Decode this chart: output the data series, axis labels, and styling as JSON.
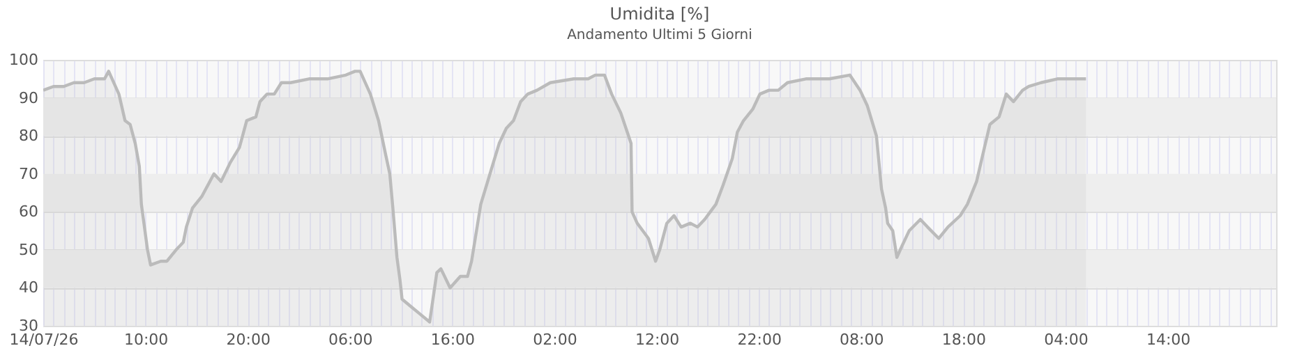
{
  "chart_data": {
    "type": "area",
    "title": "Umidita [%]",
    "subtitle": "Andamento Ultimi 5 Giorni",
    "x": [
      "--07-14T00:00",
      "--07-14T01:00",
      "--07-14T02:00",
      "--07-14T03:00",
      "--07-14T04:00",
      "--07-14T05:00",
      "--07-14T06:00",
      "--07-14T06:24",
      "--07-14T07:24",
      "--07-14T08:00",
      "--07-14T08:30",
      "--07-14T09:00",
      "--07-14T09:24",
      "--07-14T09:36",
      "--07-14T09:54",
      "--07-14T10:12",
      "--07-14T10:30",
      "--07-14T11:30",
      "--07-14T12:06",
      "--07-14T13:00",
      "--07-14T13:42",
      "--07-14T14:00",
      "--07-14T14:36",
      "--07-14T15:30",
      "--07-14T16:42",
      "--07-14T17:24",
      "--07-14T18:18",
      "--07-14T19:12",
      "--07-14T19:54",
      "--07-14T20:48",
      "--07-14T21:12",
      "--07-14T21:54",
      "--07-14T22:36",
      "--07-14T23:18",
      "--07-15T00:12",
      "--07-15T02:00",
      "--07-15T03:48",
      "--07-15T05:36",
      "--07-15T06:30",
      "--07-15T07:00",
      "--07-15T08:00",
      "--07-15T08:48",
      "--07-15T09:30",
      "--07-15T09:54",
      "--07-15T10:12",
      "--07-15T10:36",
      "--07-15T10:54",
      "--07-15T11:06",
      "--07-15T12:00",
      "--07-15T12:54",
      "--07-15T13:48",
      "--07-15T14:30",
      "--07-15T14:54",
      "--07-15T15:48",
      "--07-15T16:48",
      "--07-15T17:30",
      "--07-15T17:54",
      "--07-15T18:48",
      "--07-15T19:42",
      "--07-15T20:36",
      "--07-15T21:18",
      "--07-15T22:00",
      "--07-15T22:42",
      "--07-15T23:24",
      "--07-16T00:18",
      "--07-16T01:36",
      "--07-16T03:54",
      "--07-16T05:18",
      "--07-16T06:00",
      "--07-16T06:54",
      "--07-16T07:36",
      "--07-16T08:30",
      "--07-16T09:30",
      "--07-16T09:36",
      "--07-16T10:06",
      "--07-16T11:12",
      "--07-16T11:54",
      "--07-16T12:18",
      "--07-16T13:00",
      "--07-16T13:42",
      "--07-16T14:24",
      "--07-16T15:18",
      "--07-16T16:00",
      "--07-16T16:42",
      "--07-16T17:48",
      "--07-16T18:30",
      "--07-16T19:24",
      "--07-16T19:54",
      "--07-16T20:30",
      "--07-16T21:24",
      "--07-16T22:06",
      "--07-16T23:00",
      "--07-16T23:54",
      "--07-17T00:48",
      "--07-17T02:36",
      "--07-17T04:54",
      "--07-17T06:54",
      "--07-17T07:54",
      "--07-17T08:36",
      "--07-17T09:30",
      "--07-17T10:00",
      "--07-17T10:24",
      "--07-17T10:36",
      "--07-17T11:06",
      "--07-17T11:30",
      "--07-17T12:00",
      "--07-17T12:42",
      "--07-17T13:48",
      "--07-17T14:30",
      "--07-17T15:36",
      "--07-17T16:30",
      "--07-17T17:42",
      "--07-17T18:24",
      "--07-17T19:18",
      "--07-17T19:54",
      "--07-17T20:36",
      "--07-17T21:30",
      "--07-17T22:12",
      "--07-17T22:54",
      "--07-17T23:48",
      "--07-18T00:24",
      "--07-18T01:36",
      "--07-18T03:12",
      "--07-18T04:36",
      "--07-18T06:00"
    ],
    "series": [
      {
        "color": "#bbbbbb",
        "values": [
          92,
          93,
          93,
          94,
          94,
          95,
          95,
          97,
          91,
          84,
          83,
          78,
          72,
          62,
          56,
          50,
          46,
          47,
          47,
          50,
          52,
          56,
          61,
          64,
          70,
          68,
          73,
          77,
          84,
          85,
          89,
          91,
          91,
          94,
          94,
          95,
          95,
          96,
          97,
          97,
          91,
          84,
          75,
          70,
          61,
          48,
          42,
          37,
          35,
          33,
          31,
          44,
          45,
          40,
          43,
          43,
          47,
          62,
          70,
          78,
          82,
          84,
          89,
          91,
          92,
          94,
          95,
          95,
          96,
          96,
          91,
          86,
          78,
          60,
          57,
          53,
          47,
          50,
          57,
          59,
          56,
          57,
          56,
          58,
          62,
          67,
          74,
          81,
          84,
          87,
          91,
          92,
          92,
          94,
          95,
          95,
          96,
          92,
          88,
          80,
          66,
          61,
          57,
          55,
          48,
          51,
          55,
          58,
          56,
          53,
          56,
          59,
          62,
          68,
          75,
          83,
          85,
          91,
          89,
          92,
          93,
          94,
          95,
          95,
          95
        ]
      }
    ],
    "xlim": [
      "--07-14T00:00",
      "--07-19T00:36"
    ],
    "ylim": [
      30,
      100
    ],
    "yticks": [
      30,
      40,
      50,
      60,
      70,
      80,
      90,
      100
    ],
    "xticks": [
      {
        "value": "--07-14T00:00",
        "label": "14/07/26"
      },
      {
        "value": "--07-14T01:00",
        "label": null
      },
      {
        "value": "--07-14T02:00",
        "label": null
      },
      {
        "value": "--07-14T03:00",
        "label": null
      },
      {
        "value": "--07-14T04:00",
        "label": null
      },
      {
        "value": "--07-14T05:00",
        "label": null
      },
      {
        "value": "--07-14T06:00",
        "label": null
      },
      {
        "value": "--07-14T07:00",
        "label": null
      },
      {
        "value": "--07-14T08:00",
        "label": null
      },
      {
        "value": "--07-14T09:00",
        "label": null
      },
      {
        "value": "--07-14T10:00",
        "label": "10:00"
      },
      {
        "value": "--07-14T11:00",
        "label": null
      },
      {
        "value": "--07-14T12:00",
        "label": null
      },
      {
        "value": "--07-14T13:00",
        "label": null
      },
      {
        "value": "--07-14T14:00",
        "label": null
      },
      {
        "value": "--07-14T15:00",
        "label": null
      },
      {
        "value": "--07-14T16:00",
        "label": null
      },
      {
        "value": "--07-14T17:00",
        "label": null
      },
      {
        "value": "--07-14T18:00",
        "label": null
      },
      {
        "value": "--07-14T19:00",
        "label": null
      },
      {
        "value": "--07-14T20:00",
        "label": "20:00"
      },
      {
        "value": "--07-14T21:00",
        "label": null
      },
      {
        "value": "--07-14T22:00",
        "label": null
      },
      {
        "value": "--07-14T23:00",
        "label": null
      },
      {
        "value": "--07-15T00:00",
        "label": null
      },
      {
        "value": "--07-15T01:00",
        "label": null
      },
      {
        "value": "--07-15T02:00",
        "label": null
      },
      {
        "value": "--07-15T03:00",
        "label": null
      },
      {
        "value": "--07-15T04:00",
        "label": null
      },
      {
        "value": "--07-15T05:00",
        "label": null
      },
      {
        "value": "--07-15T06:00",
        "label": "06:00"
      },
      {
        "value": "--07-15T07:00",
        "label": null
      },
      {
        "value": "--07-15T08:00",
        "label": null
      },
      {
        "value": "--07-15T09:00",
        "label": null
      },
      {
        "value": "--07-15T10:00",
        "label": null
      },
      {
        "value": "--07-15T11:00",
        "label": null
      },
      {
        "value": "--07-15T12:00",
        "label": null
      },
      {
        "value": "--07-15T13:00",
        "label": null
      },
      {
        "value": "--07-15T14:00",
        "label": null
      },
      {
        "value": "--07-15T15:00",
        "label": null
      },
      {
        "value": "--07-15T16:00",
        "label": "16:00"
      },
      {
        "value": "--07-15T17:00",
        "label": null
      },
      {
        "value": "--07-15T18:00",
        "label": null
      },
      {
        "value": "--07-15T19:00",
        "label": null
      },
      {
        "value": "--07-15T20:00",
        "label": null
      },
      {
        "value": "--07-15T21:00",
        "label": null
      },
      {
        "value": "--07-15T22:00",
        "label": null
      },
      {
        "value": "--07-15T23:00",
        "label": null
      },
      {
        "value": "--07-16T00:00",
        "label": null
      },
      {
        "value": "--07-16T01:00",
        "label": null
      },
      {
        "value": "--07-16T02:00",
        "label": "02:00"
      },
      {
        "value": "--07-16T03:00",
        "label": null
      },
      {
        "value": "--07-16T04:00",
        "label": null
      },
      {
        "value": "--07-16T05:00",
        "label": null
      },
      {
        "value": "--07-16T06:00",
        "label": null
      },
      {
        "value": "--07-16T07:00",
        "label": null
      },
      {
        "value": "--07-16T08:00",
        "label": null
      },
      {
        "value": "--07-16T09:00",
        "label": null
      },
      {
        "value": "--07-16T10:00",
        "label": null
      },
      {
        "value": "--07-16T11:00",
        "label": null
      },
      {
        "value": "--07-16T12:00",
        "label": "12:00"
      },
      {
        "value": "--07-16T13:00",
        "label": null
      },
      {
        "value": "--07-16T14:00",
        "label": null
      },
      {
        "value": "--07-16T15:00",
        "label": null
      },
      {
        "value": "--07-16T16:00",
        "label": null
      },
      {
        "value": "--07-16T17:00",
        "label": null
      },
      {
        "value": "--07-16T18:00",
        "label": null
      },
      {
        "value": "--07-16T19:00",
        "label": null
      },
      {
        "value": "--07-16T20:00",
        "label": null
      },
      {
        "value": "--07-16T21:00",
        "label": null
      },
      {
        "value": "--07-16T22:00",
        "label": "22:00"
      },
      {
        "value": "--07-16T23:00",
        "label": null
      },
      {
        "value": "--07-17T00:00",
        "label": null
      },
      {
        "value": "--07-17T01:00",
        "label": null
      },
      {
        "value": "--07-17T02:00",
        "label": null
      },
      {
        "value": "--07-17T03:00",
        "label": null
      },
      {
        "value": "--07-17T04:00",
        "label": null
      },
      {
        "value": "--07-17T05:00",
        "label": null
      },
      {
        "value": "--07-17T06:00",
        "label": null
      },
      {
        "value": "--07-17T07:00",
        "label": null
      },
      {
        "value": "--07-17T08:00",
        "label": "08:00"
      },
      {
        "value": "--07-17T09:00",
        "label": null
      },
      {
        "value": "--07-17T10:00",
        "label": null
      },
      {
        "value": "--07-17T11:00",
        "label": null
      },
      {
        "value": "--07-17T12:00",
        "label": null
      },
      {
        "value": "--07-17T13:00",
        "label": null
      },
      {
        "value": "--07-17T14:00",
        "label": null
      },
      {
        "value": "--07-17T15:00",
        "label": null
      },
      {
        "value": "--07-17T16:00",
        "label": null
      },
      {
        "value": "--07-17T17:00",
        "label": null
      },
      {
        "value": "--07-17T18:00",
        "label": "18:00"
      },
      {
        "value": "--07-17T19:00",
        "label": null
      },
      {
        "value": "--07-17T20:00",
        "label": null
      },
      {
        "value": "--07-17T21:00",
        "label": null
      },
      {
        "value": "--07-17T22:00",
        "label": null
      },
      {
        "value": "--07-17T23:00",
        "label": null
      },
      {
        "value": "--07-18T00:00",
        "label": null
      },
      {
        "value": "--07-18T01:00",
        "label": null
      },
      {
        "value": "--07-18T02:00",
        "label": null
      },
      {
        "value": "--07-18T03:00",
        "label": null
      },
      {
        "value": "--07-18T04:00",
        "label": "04:00"
      },
      {
        "value": "--07-18T05:00",
        "label": null
      },
      {
        "value": "--07-18T06:00",
        "label": null
      },
      {
        "value": "--07-18T07:00",
        "label": null
      },
      {
        "value": "--07-18T08:00",
        "label": null
      },
      {
        "value": "--07-18T09:00",
        "label": null
      },
      {
        "value": "--07-18T10:00",
        "label": null
      },
      {
        "value": "--07-18T11:00",
        "label": null
      },
      {
        "value": "--07-18T12:00",
        "label": null
      },
      {
        "value": "--07-18T13:00",
        "label": null
      },
      {
        "value": "--07-18T14:00",
        "label": "14:00"
      },
      {
        "value": "--07-18T15:00",
        "label": null
      },
      {
        "value": "--07-18T16:00",
        "label": null
      },
      {
        "value": "--07-18T17:00",
        "label": null
      },
      {
        "value": "--07-18T18:00",
        "label": null
      },
      {
        "value": "--07-18T19:00",
        "label": null
      },
      {
        "value": "--07-18T20:00",
        "label": null
      },
      {
        "value": "--07-18T21:00",
        "label": null
      },
      {
        "value": "--07-18T22:00",
        "label": null
      },
      {
        "value": "--07-18T23:00",
        "label": null
      },
      {
        "value": "--07-19T00:00",
        "label": null
      }
    ],
    "bands": [
      {
        "axis": "y",
        "from": 40,
        "to": 50,
        "color": "#eeeeee"
      },
      {
        "axis": "y",
        "from": 60,
        "to": 70,
        "color": "#eeeeee"
      },
      {
        "axis": "y",
        "from": 80,
        "to": 90,
        "color": "#eeeeee"
      }
    ],
    "grid": true
  }
}
